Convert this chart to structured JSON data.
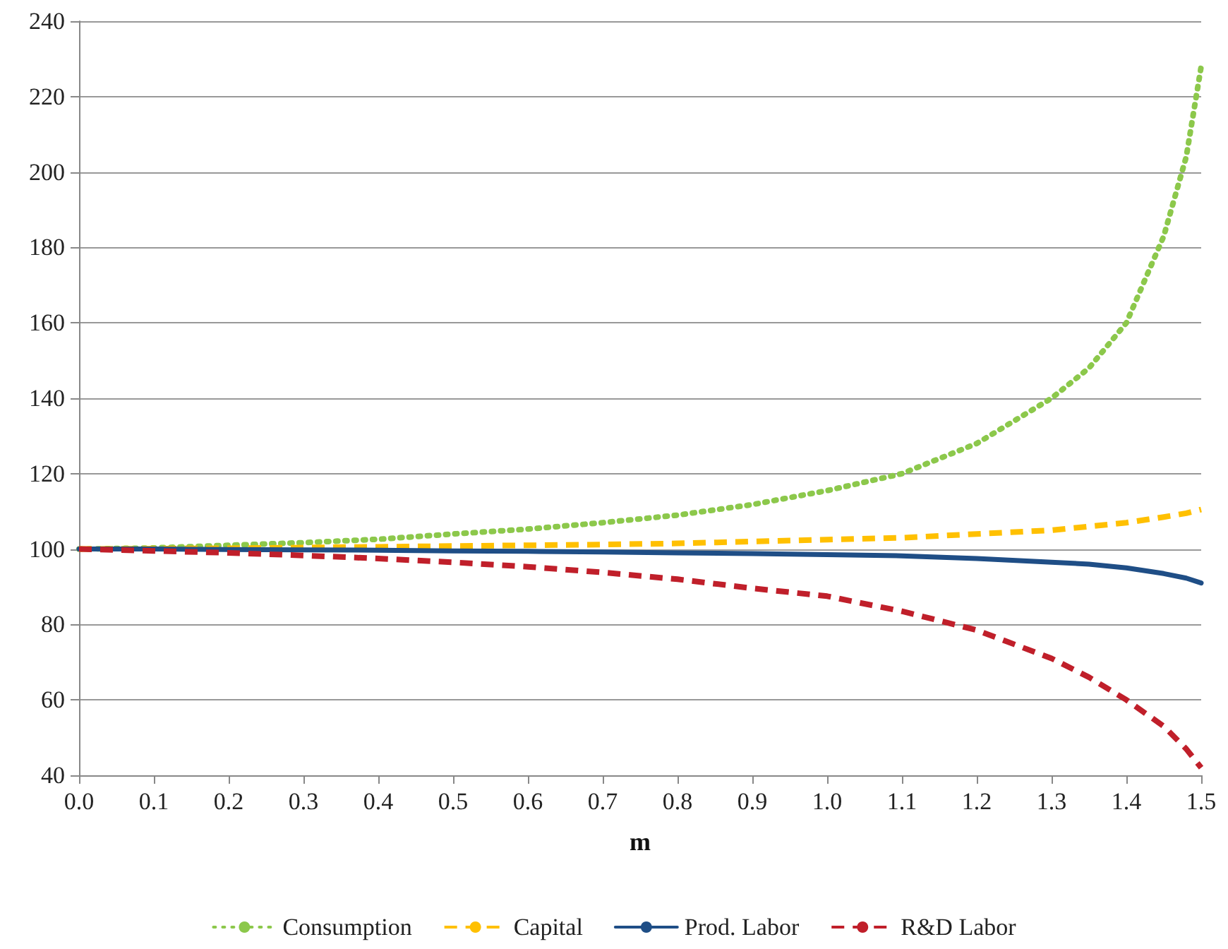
{
  "chart_data": {
    "type": "line",
    "xlabel": "m",
    "x": [
      0,
      0.1,
      0.2,
      0.3,
      0.4,
      0.5,
      0.6,
      0.7,
      0.8,
      0.9,
      1.0,
      1.1,
      1.2,
      1.3,
      1.35,
      1.4,
      1.45,
      1.48,
      1.5
    ],
    "series": [
      {
        "name": "Consumption",
        "color": "#8cc84b",
        "line_style": "dotted",
        "values": [
          100,
          100.3,
          101,
          101.7,
          102.6,
          104,
          105.3,
          107,
          109,
          111.8,
          115.5,
          120,
          128,
          140,
          148,
          160,
          183,
          204,
          228
        ]
      },
      {
        "name": "Capital",
        "color": "#ffc000",
        "line_style": "dashed",
        "values": [
          100,
          100.1,
          100.2,
          100.4,
          100.6,
          100.8,
          101,
          101.2,
          101.5,
          102,
          102.5,
          103,
          104,
          105,
          106,
          107,
          108.5,
          109.5,
          110.5
        ]
      },
      {
        "name": "Prod. Labor",
        "color": "#1f4e86",
        "line_style": "solid",
        "values": [
          100,
          100,
          99.9,
          99.8,
          99.7,
          99.5,
          99.4,
          99.2,
          99,
          98.8,
          98.5,
          98.2,
          97.5,
          96.5,
          96,
          95,
          93.5,
          92.3,
          91
        ]
      },
      {
        "name": "R&D Labor",
        "color": "#c01f2a",
        "line_style": "dashed",
        "values": [
          100,
          99.5,
          99,
          98.3,
          97.5,
          96.5,
          95.3,
          93.8,
          92,
          89.6,
          87.5,
          83.5,
          78.5,
          71,
          66,
          60,
          53,
          47,
          42
        ]
      }
    ],
    "xlim": [
      0,
      1.5
    ],
    "xticks": [
      {
        "value": 0,
        "label": "0.0"
      },
      {
        "value": 0.1,
        "label": "0.1"
      },
      {
        "value": 0.2,
        "label": "0.2"
      },
      {
        "value": 0.3,
        "label": "0.3"
      },
      {
        "value": 0.4,
        "label": "0.4"
      },
      {
        "value": 0.5,
        "label": "0.5"
      },
      {
        "value": 0.6,
        "label": "0.6"
      },
      {
        "value": 0.7,
        "label": "0.7"
      },
      {
        "value": 0.8,
        "label": "0.8"
      },
      {
        "value": 0.9,
        "label": "0.9"
      },
      {
        "value": 1.0,
        "label": "1.0"
      },
      {
        "value": 1.1,
        "label": "1.1"
      },
      {
        "value": 1.2,
        "label": "1.2"
      },
      {
        "value": 1.3,
        "label": "1.3"
      },
      {
        "value": 1.4,
        "label": "1.4"
      },
      {
        "value": 1.5,
        "label": "1.5"
      }
    ],
    "ylim": [
      40,
      240
    ],
    "yticks": [
      40,
      60,
      80,
      100,
      120,
      140,
      160,
      180,
      200,
      220,
      240
    ],
    "grid": "y",
    "legend": "bottom",
    "marker": "none"
  }
}
